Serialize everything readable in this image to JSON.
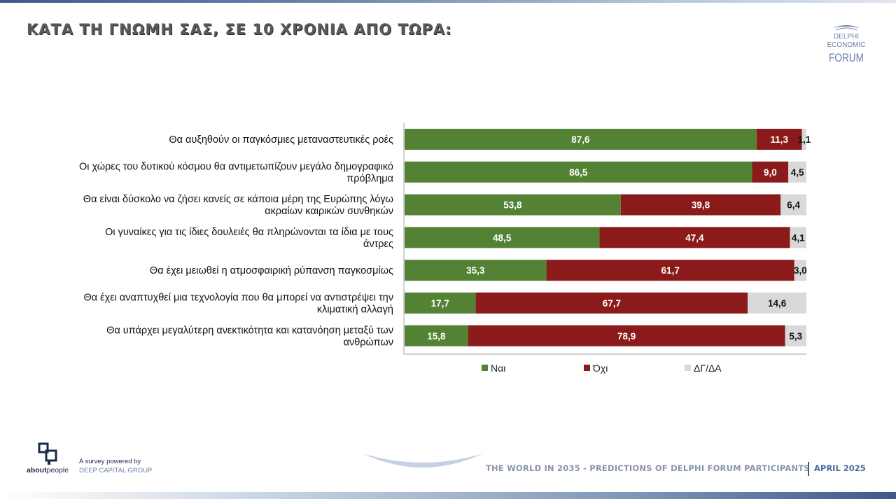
{
  "header": {
    "title": "ΚΑΤΑ ΤΗ ΓΝΩΜΗ ΣΑΣ, ΣΕ 10 ΧΡΟΝΙΑ ΑΠΟ ΤΩΡΑ:",
    "brand_line_1": "DELPHI",
    "brand_line_2": "ECONOMIC",
    "brand_line_3": "FORUM"
  },
  "chart_data": {
    "type": "bar",
    "orientation": "horizontal",
    "stacked": true,
    "categories": [
      [
        "Θα αυξηθούν οι παγκόσμιες μεταναστευτικές ροές"
      ],
      [
        "Οι χώρες του δυτικού κόσμου θα αντιμετωπίζουν μεγάλο δημογραφικό",
        "πρόβλημα"
      ],
      [
        "Θα είναι δύσκολο να ζήσει κανείς σε κάποια μέρη της Ευρώπης λόγω",
        "ακραίων καιρικών συνθηκών"
      ],
      [
        "Οι γυναίκες για τις ίδιες δουλειές θα πληρώνονται τα ίδια με τους",
        "άντρες"
      ],
      [
        "Θα έχει μειωθεί η ατμοσφαιρική ρύπανση παγκοσμίως"
      ],
      [
        "Θα έχει αναπτυχθεί μια τεχνολογία που θα μπορεί να αντιστρέψει την",
        "κλιματική αλλαγή"
      ],
      [
        "Θα υπάρχει μεγαλύτερη ανεκτικότητα και κατανόηση μεταξύ των",
        "ανθρώπων"
      ]
    ],
    "series": [
      {
        "name": "Ναι",
        "color": "#548235",
        "values": [
          87.6,
          86.5,
          53.8,
          48.5,
          35.3,
          17.7,
          15.8
        ],
        "labels": [
          "87,6",
          "86,5",
          "53,8",
          "48,5",
          "35,3",
          "17,7",
          "15,8"
        ]
      },
      {
        "name": "Όχι",
        "color": "#8b1a1a",
        "values": [
          11.3,
          9.0,
          39.8,
          47.4,
          61.7,
          67.7,
          78.9
        ],
        "labels": [
          "11,3",
          "9,0",
          "39,8",
          "47,4",
          "61,7",
          "67,7",
          "78,9"
        ]
      },
      {
        "name": "ΔΓ/ΔΑ",
        "color": "#d9d9d9",
        "values": [
          1.1,
          4.5,
          6.4,
          4.1,
          3.0,
          14.6,
          5.3
        ],
        "labels": [
          "1,1",
          "4,5",
          "6,4",
          "4,1",
          "3,0",
          "14,6",
          "5,3"
        ]
      }
    ],
    "xlim": [
      0,
      100
    ],
    "grid": false,
    "legend_position": "bottom"
  },
  "footer": {
    "brand_bold": "about",
    "brand_light": "people",
    "survey_line_1": "A survey powered by",
    "survey_line_2": "DEEP CAPITAL GROUP",
    "tagline": "THE WORLD IN 2035 - PREDICTIONS OF DELPHI FORUM PARTICIPANTS",
    "date": "APRIL 2025"
  }
}
